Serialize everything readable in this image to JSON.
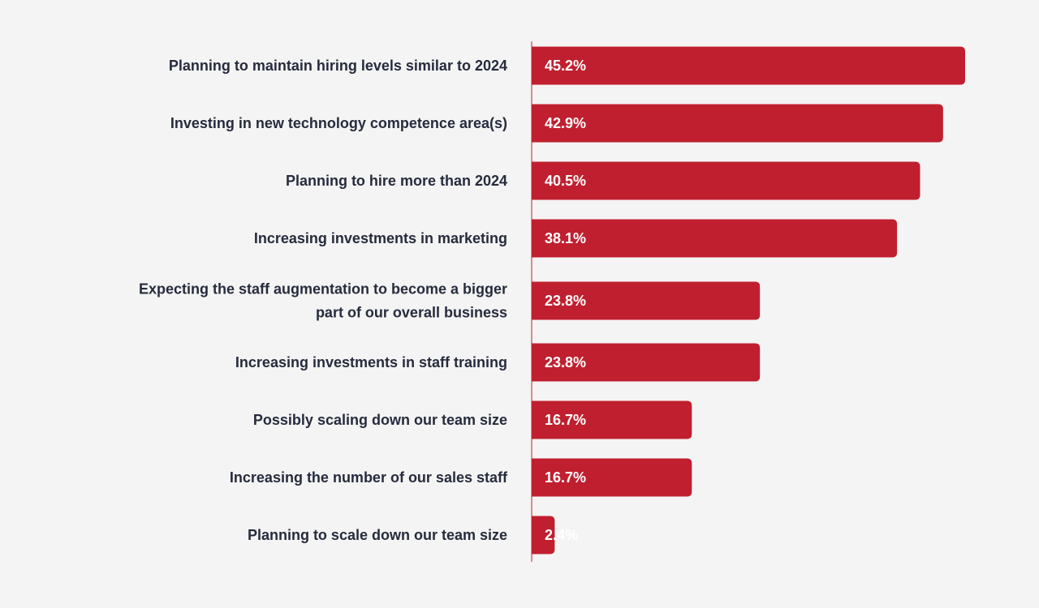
{
  "chart_data": {
    "type": "bar",
    "orientation": "horizontal",
    "title": "",
    "xlabel": "",
    "ylabel": "",
    "categories": [
      [
        "Planning to maintain hiring levels similar to 2024"
      ],
      [
        "Investing in new technology competence area(s)"
      ],
      [
        "Planning to hire more than 2024"
      ],
      [
        "Increasing investments in marketing"
      ],
      [
        "Expecting the staff augmentation to become a bigger",
        "part of our overall business"
      ],
      [
        "Increasing investments in staff training"
      ],
      [
        "Possibly scaling down our team size"
      ],
      [
        "Increasing the number of our sales staff"
      ],
      [
        "Planning to scale down our team size"
      ]
    ],
    "values": [
      45.2,
      42.9,
      40.5,
      38.1,
      23.8,
      23.8,
      16.7,
      16.7,
      2.4
    ],
    "value_labels": [
      "45.2%",
      "42.9%",
      "40.5%",
      "38.1%",
      "23.8%",
      "23.8%",
      "16.7%",
      "16.7%",
      "2.4%"
    ],
    "xlim": [
      0,
      50
    ],
    "grid": false,
    "legend": "none",
    "colors": {
      "bar": "#c01f2f",
      "axis": "#c01f2f",
      "label_text": "#262b3d",
      "value_text": "#ffffff",
      "background": "#f4f4f4"
    }
  }
}
